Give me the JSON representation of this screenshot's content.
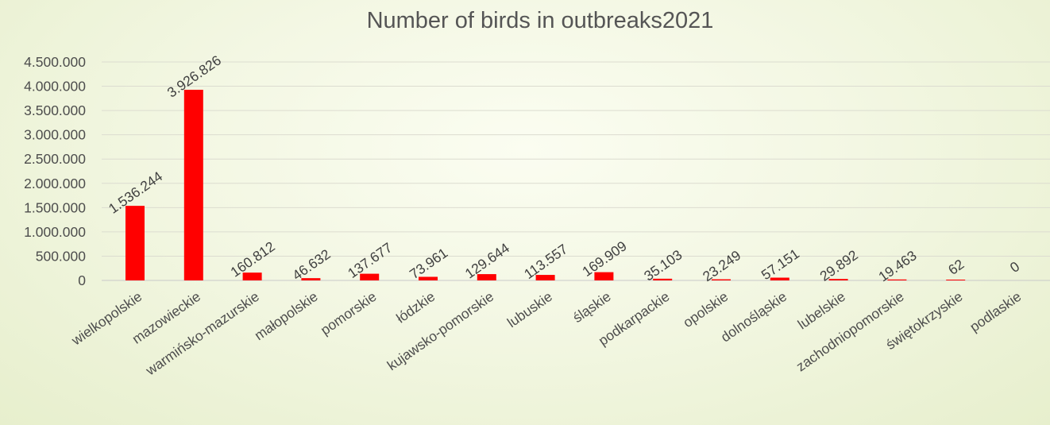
{
  "chart_data": {
    "type": "bar",
    "title": "Number of birds in outbreaks2021",
    "xlabel": "",
    "ylabel": "",
    "ylim": [
      0,
      4500000
    ],
    "ytick_step": 500000,
    "ytick_labels": [
      "0",
      "500.000",
      "1.000.000",
      "1.500.000",
      "2.000.000",
      "2.500.000",
      "3.000.000",
      "3.500.000",
      "4.000.000",
      "4.500.000"
    ],
    "grid": true,
    "legend": "none",
    "bar_color": "#ff0000",
    "categories": [
      "wielkopolskie",
      "mazowieckie",
      "warmińsko-mazurskie",
      "małopolskie",
      "pomorskie",
      "łódzkie",
      "kujawsko-pomorskie",
      "lubuskie",
      "śląskie",
      "podkarpackie",
      "opolskie",
      "dolnośląskie",
      "lubelskie",
      "zachodniopomorskie",
      "świętokrzyskie",
      "podlaskie"
    ],
    "values": [
      1536244,
      3926826,
      160812,
      46632,
      137677,
      73961,
      129644,
      113557,
      169909,
      35103,
      23249,
      57151,
      29892,
      19463,
      62,
      0
    ],
    "data_labels": [
      "1.536.244",
      "3.926.826",
      "160.812",
      "46.632",
      "137.677",
      "73.961",
      "129.644",
      "113.557",
      "169.909",
      "35.103",
      "23.249",
      "57.151",
      "29.892",
      "19.463",
      "62",
      "0"
    ]
  }
}
